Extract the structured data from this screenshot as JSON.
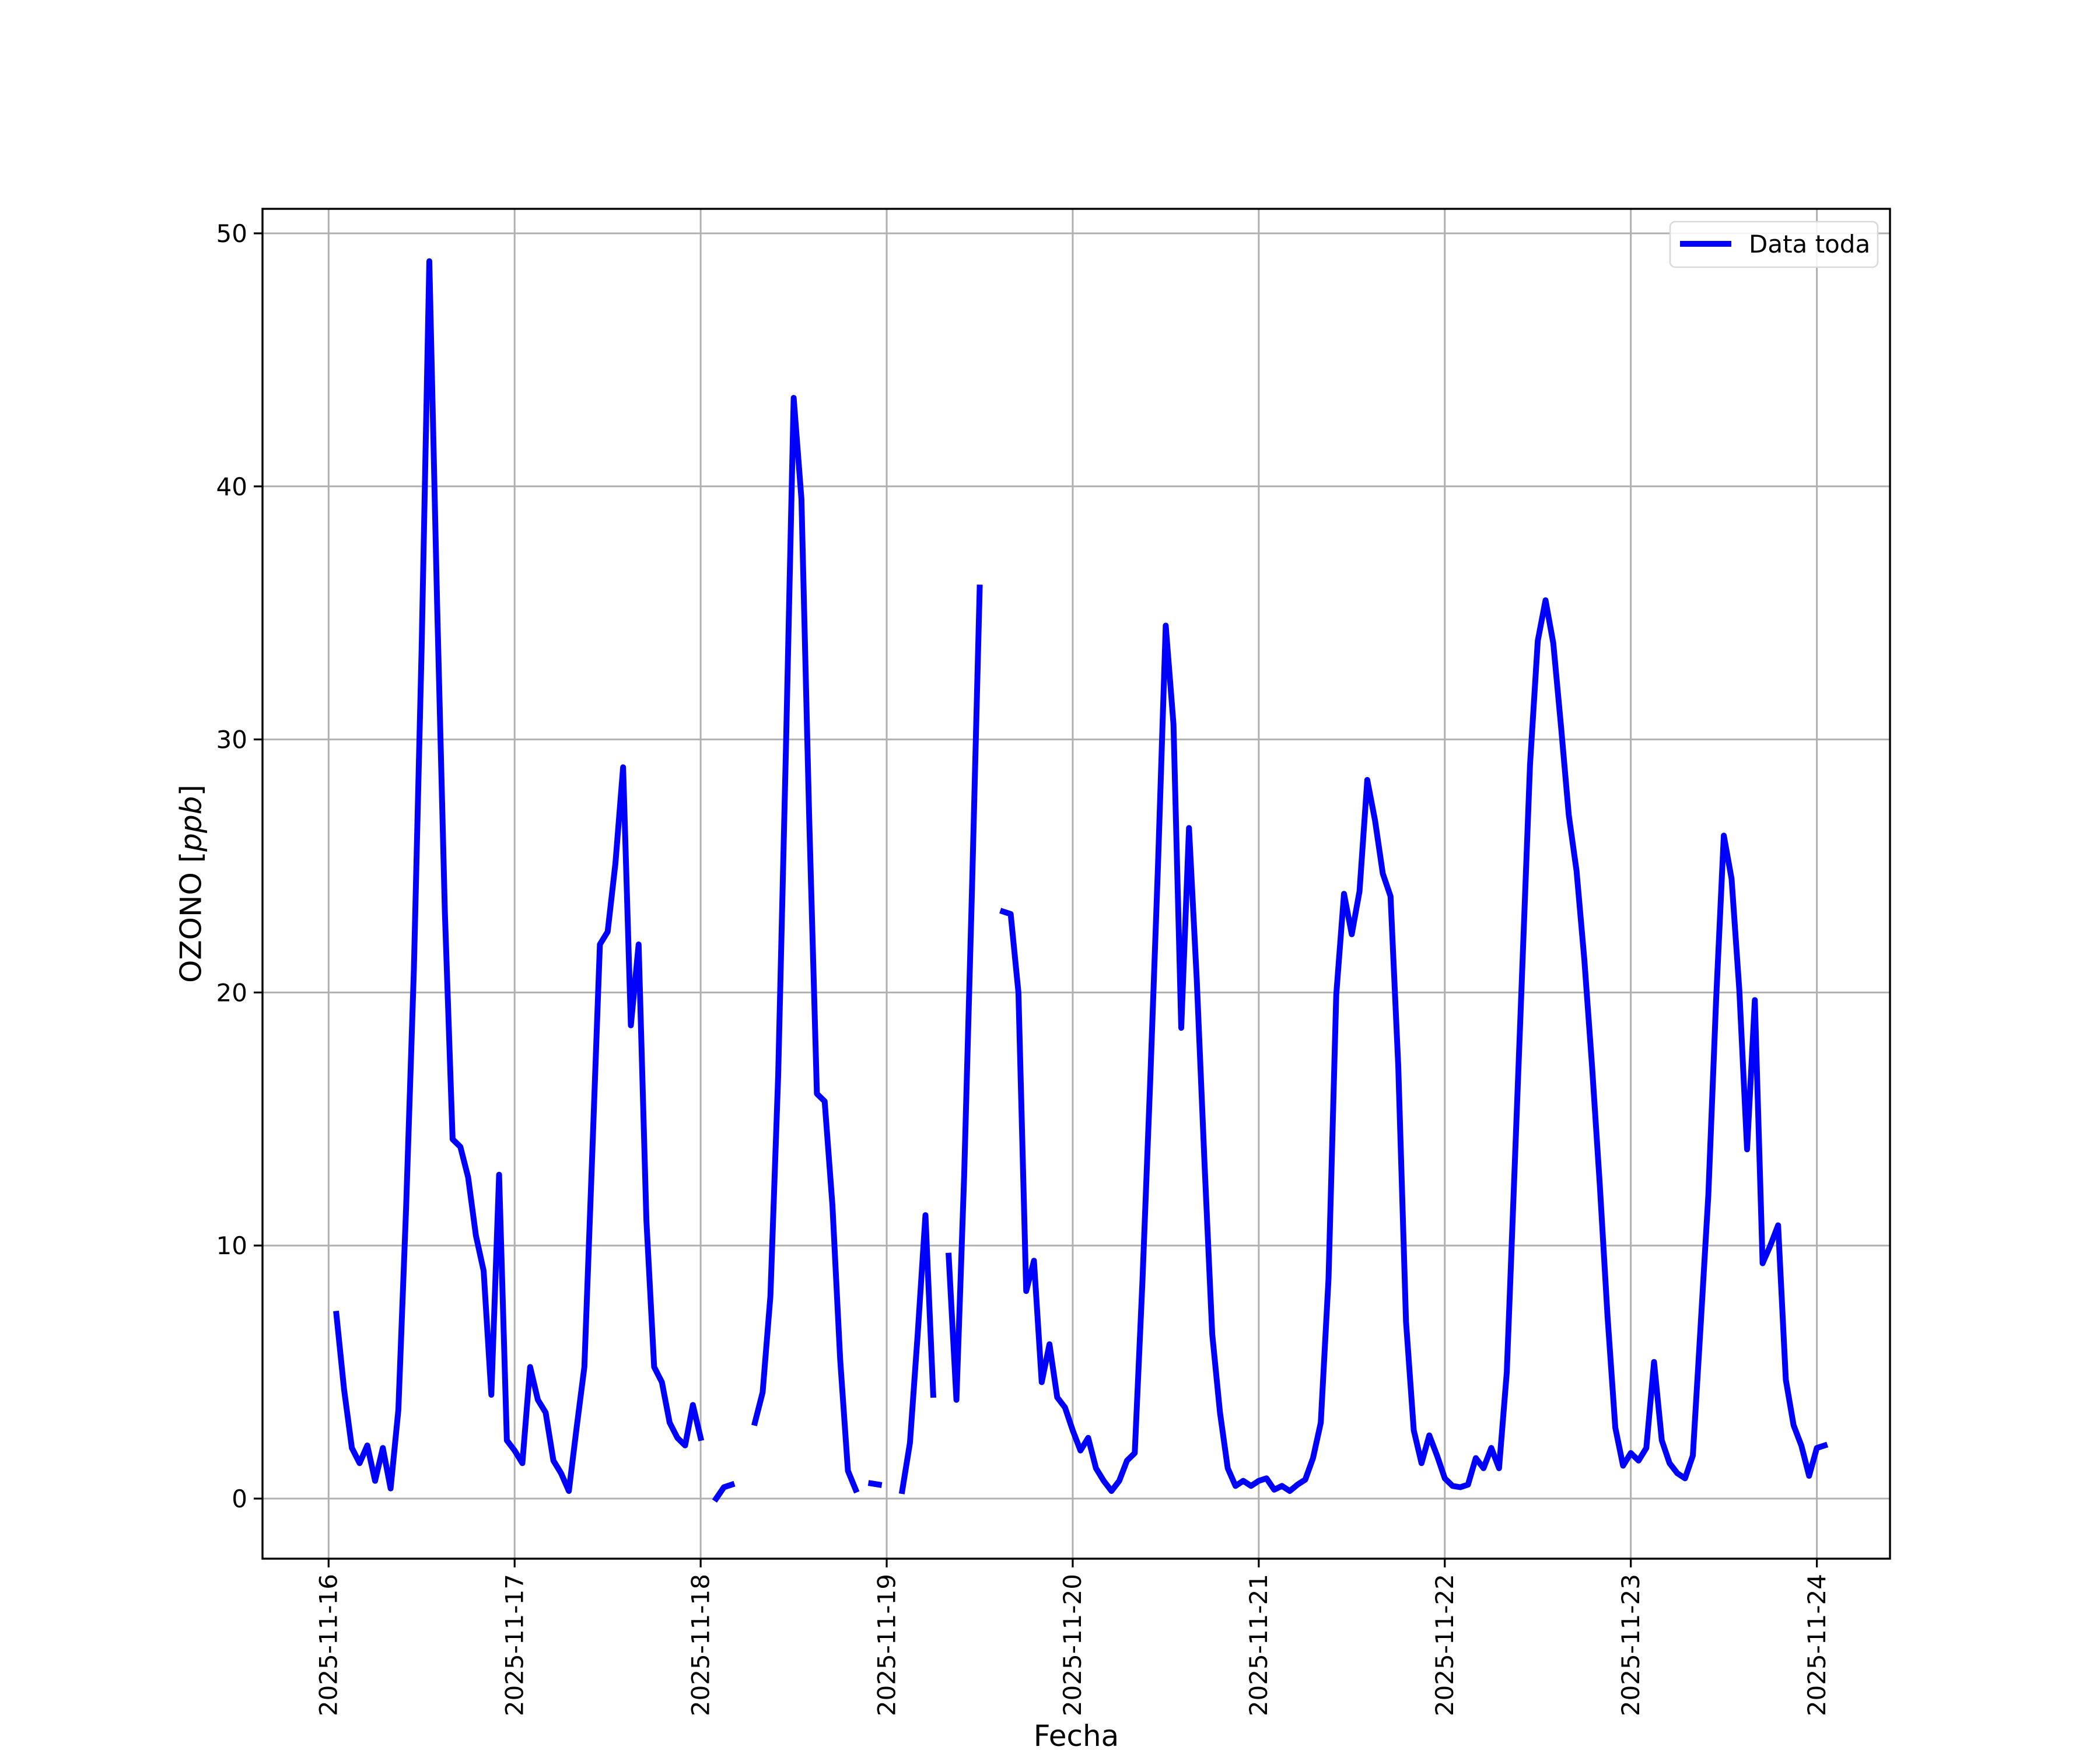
{
  "figure": {
    "background": "#ffffff"
  },
  "chart_data": {
    "type": "line",
    "title": "",
    "xlabel": "Fecha",
    "ylabel": "OZONO [ppb]",
    "ylabel_parts": {
      "prefix": "OZONO [",
      "italic": "ppb",
      "suffix": "]"
    },
    "legend": {
      "label": "Data toda",
      "position": "upper right"
    },
    "line_color": "#0000ff",
    "grid": true,
    "grid_color": "#b0b0b0",
    "ylim": [
      -2.45,
      51.0
    ],
    "y_ticks": [
      0,
      10,
      20,
      30,
      40,
      50
    ],
    "x_tick_labels": [
      "2025-11-16",
      "2025-11-17",
      "2025-11-18",
      "2025-11-19",
      "2025-11-20",
      "2025-11-21",
      "2025-11-22",
      "2025-11-23",
      "2025-11-24"
    ],
    "x_start": "2025-11-16 00:00",
    "x_interval_hours": 1,
    "series": [
      {
        "name": "Data toda",
        "values": [
          null,
          7.3,
          4.3,
          2.0,
          1.4,
          2.1,
          0.7,
          2.0,
          0.4,
          3.5,
          11.5,
          20.9,
          33.6,
          48.9,
          35.4,
          23.2,
          14.2,
          13.9,
          12.7,
          10.4,
          9.0,
          4.1,
          12.8,
          2.3,
          1.9,
          1.4,
          5.2,
          3.9,
          3.4,
          1.5,
          1.0,
          0.3,
          2.8,
          5.2,
          13.5,
          21.9,
          22.4,
          25.1,
          28.9,
          18.7,
          21.9,
          11.0,
          5.2,
          4.6,
          3.0,
          2.4,
          2.1,
          3.7,
          2.4,
          null,
          0.0,
          0.45,
          0.55,
          null,
          null,
          3.0,
          4.2,
          8.0,
          16.7,
          29.6,
          43.5,
          39.5,
          26.9,
          16.0,
          15.7,
          11.6,
          5.5,
          1.1,
          0.35,
          null,
          0.6,
          0.55,
          null,
          null,
          0.3,
          2.2,
          6.5,
          11.2,
          4.1,
          null,
          9.6,
          3.9,
          12.8,
          24.0,
          36.0,
          null,
          null,
          23.2,
          23.1,
          20.0,
          8.2,
          9.4,
          4.6,
          6.1,
          4.0,
          3.6,
          2.7,
          1.9,
          2.4,
          1.2,
          0.7,
          0.3,
          0.7,
          1.5,
          1.8,
          8.6,
          16.5,
          25.0,
          34.5,
          30.6,
          18.6,
          26.5,
          20.5,
          13.3,
          6.5,
          3.4,
          1.2,
          0.5,
          0.7,
          0.5,
          0.7,
          0.8,
          0.35,
          0.5,
          0.3,
          0.55,
          0.75,
          1.6,
          3.0,
          8.7,
          19.9,
          23.9,
          22.3,
          24.0,
          28.4,
          26.8,
          24.7,
          23.8,
          17.1,
          7.0,
          2.7,
          1.4,
          2.5,
          1.7,
          0.8,
          0.5,
          0.45,
          0.55,
          1.6,
          1.2,
          2.0,
          1.2,
          5.0,
          13.0,
          21.0,
          29.0,
          33.9,
          35.5,
          33.8,
          30.5,
          27.0,
          24.8,
          21.3,
          17.1,
          12.4,
          7.2,
          2.8,
          1.3,
          1.8,
          1.5,
          2.0,
          5.4,
          2.3,
          1.4,
          1.0,
          0.8,
          1.7,
          6.8,
          12.0,
          19.7,
          26.2,
          24.5,
          20.1,
          13.8,
          19.7,
          9.3,
          10.0,
          10.8,
          4.7,
          2.9,
          2.1,
          0.9,
          2.0,
          2.1
        ]
      }
    ]
  }
}
